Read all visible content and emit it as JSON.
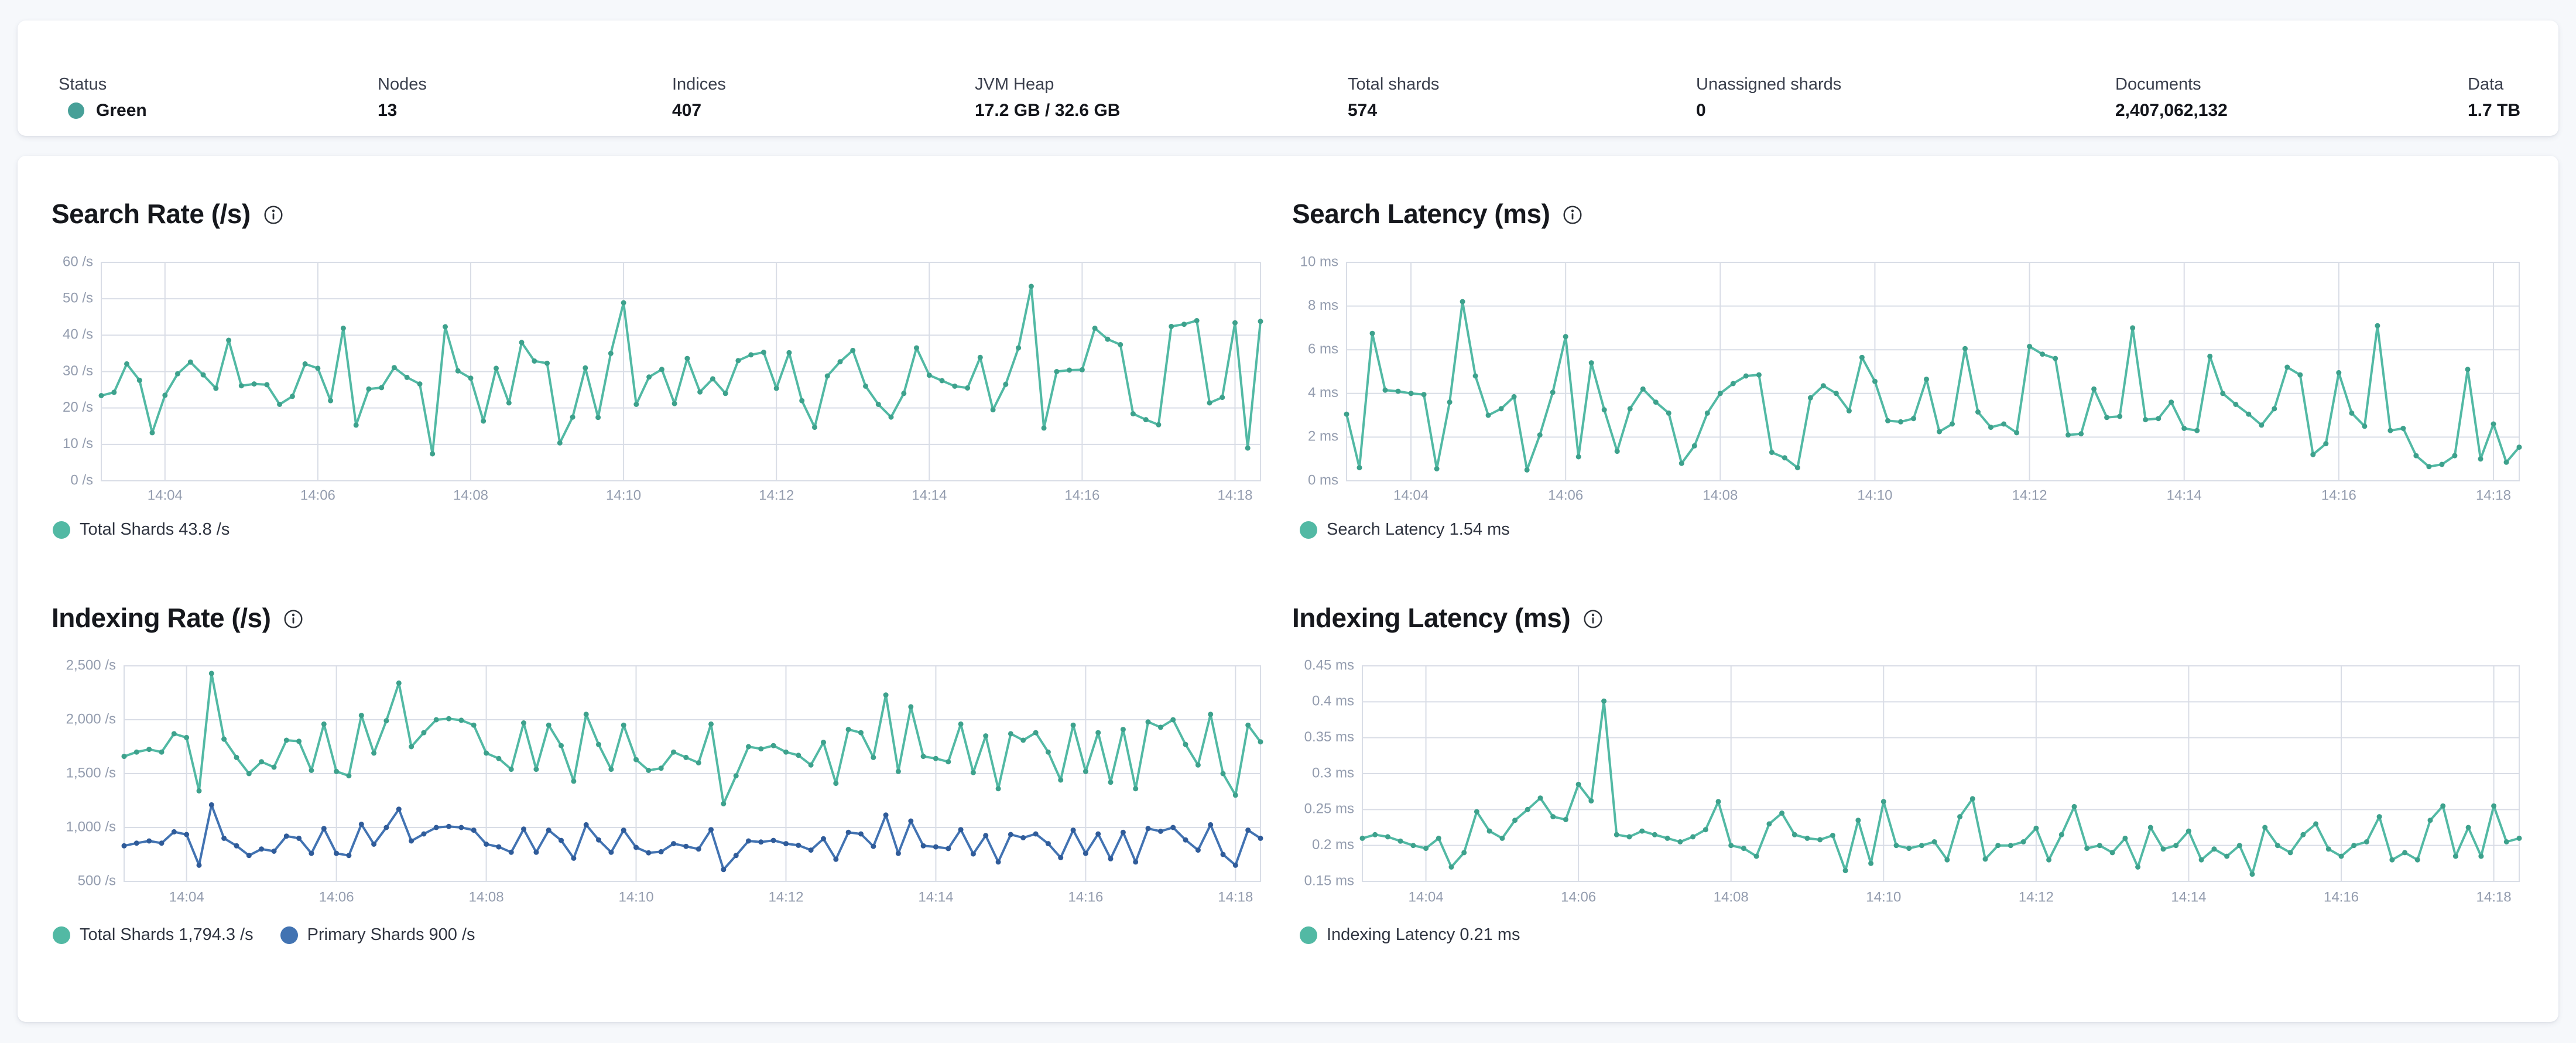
{
  "header": {
    "stats": [
      {
        "label": "Status",
        "value": "Green",
        "type": "status",
        "color": "#47a098"
      },
      {
        "label": "Nodes",
        "value": "13"
      },
      {
        "label": "Indices",
        "value": "407"
      },
      {
        "label": "JVM Heap",
        "value": "17.2 GB / 32.6 GB"
      },
      {
        "label": "Total shards",
        "value": "574"
      },
      {
        "label": "Unassigned shards",
        "value": "0"
      },
      {
        "label": "Documents",
        "value": "2,407,062,132"
      },
      {
        "label": "Data",
        "value": "1.7 TB"
      }
    ]
  },
  "chart_data": "see charts[] below",
  "charts": [
    {
      "type": "line",
      "title": "Search Rate (/s)",
      "x": {
        "unit": "seconds since 14:00",
        "t0": 190,
        "t1": 1100,
        "dt": 10,
        "ticks": [
          {
            "t": 240,
            "label": "14:04"
          },
          {
            "t": 360,
            "label": "14:06"
          },
          {
            "t": 480,
            "label": "14:08"
          },
          {
            "t": 600,
            "label": "14:10"
          },
          {
            "t": 720,
            "label": "14:12"
          },
          {
            "t": 840,
            "label": "14:14"
          },
          {
            "t": 960,
            "label": "14:16"
          },
          {
            "t": 1080,
            "label": "14:18"
          }
        ]
      },
      "y": {
        "min": 0,
        "max": 60,
        "ticks": [
          {
            "v": 0,
            "label": "0 /s"
          },
          {
            "v": 10,
            "label": "10 /s"
          },
          {
            "v": 20,
            "label": "20 /s"
          },
          {
            "v": 30,
            "label": "30 /s"
          },
          {
            "v": 40,
            "label": "40 /s"
          },
          {
            "v": 50,
            "label": "50 /s"
          },
          {
            "v": 60,
            "label": "60 /s"
          }
        ]
      },
      "series": [
        {
          "name": "Total Shards",
          "legend": "Total Shards 43.8 /s",
          "color": "#52b9a4",
          "marker": "#3da18c",
          "values": [
            23.4,
            24.3,
            32.1,
            27.6,
            13.2,
            23.5,
            29.4,
            32.6,
            29.1,
            25.4,
            38.6,
            26.1,
            26.6,
            26.4,
            21.0,
            23.2,
            32.1,
            30.9,
            22.0,
            41.9,
            15.3,
            25.2,
            25.6,
            31.1,
            28.4,
            26.6,
            7.4,
            42.3,
            30.2,
            28.2,
            16.4,
            30.9,
            21.4,
            38.0,
            32.9,
            32.3,
            10.4,
            17.5,
            31.0,
            17.4,
            35.0,
            48.9,
            21.0,
            28.5,
            30.6,
            21.2,
            33.6,
            24.4,
            28.0,
            24.0,
            33.0,
            34.6,
            35.3,
            25.4,
            35.2,
            22.0,
            14.7,
            28.8,
            32.7,
            35.8,
            26.0,
            21.0,
            17.5,
            24.0,
            36.5,
            29.0,
            27.5,
            26.0,
            25.5,
            33.9,
            19.5,
            26.5,
            36.5,
            53.4,
            14.5,
            30.0,
            30.4,
            30.5,
            41.9,
            38.9,
            37.4,
            18.4,
            16.8,
            15.4,
            42.4,
            43.0,
            44.0,
            21.4,
            22.9,
            43.4,
            9.0,
            43.8
          ]
        }
      ]
    },
    {
      "type": "line",
      "title": "Search Latency (ms)",
      "x": {
        "unit": "seconds since 14:00",
        "t0": 190,
        "t1": 1100,
        "dt": 10,
        "ticks": [
          {
            "t": 240,
            "label": "14:04"
          },
          {
            "t": 360,
            "label": "14:06"
          },
          {
            "t": 480,
            "label": "14:08"
          },
          {
            "t": 600,
            "label": "14:10"
          },
          {
            "t": 720,
            "label": "14:12"
          },
          {
            "t": 840,
            "label": "14:14"
          },
          {
            "t": 960,
            "label": "14:16"
          },
          {
            "t": 1080,
            "label": "14:18"
          }
        ]
      },
      "y": {
        "min": 0,
        "max": 10,
        "ticks": [
          {
            "v": 0,
            "label": "0 ms"
          },
          {
            "v": 2,
            "label": "2 ms"
          },
          {
            "v": 4,
            "label": "4 ms"
          },
          {
            "v": 6,
            "label": "6 ms"
          },
          {
            "v": 8,
            "label": "8 ms"
          },
          {
            "v": 10,
            "label": "10 ms"
          }
        ]
      },
      "series": [
        {
          "name": "Search Latency",
          "legend": "Search Latency 1.54 ms",
          "color": "#52b9a4",
          "marker": "#3da18c",
          "values": [
            3.05,
            0.6,
            6.75,
            4.15,
            4.1,
            4.0,
            3.95,
            0.55,
            3.6,
            8.2,
            4.8,
            3.0,
            3.3,
            3.85,
            0.5,
            2.1,
            4.05,
            6.6,
            1.1,
            5.4,
            3.25,
            1.35,
            3.3,
            4.2,
            3.6,
            3.1,
            0.8,
            1.6,
            3.1,
            4.0,
            4.45,
            4.8,
            4.85,
            1.3,
            1.05,
            0.6,
            3.8,
            4.35,
            4.0,
            3.2,
            5.65,
            4.55,
            2.75,
            2.7,
            2.85,
            4.65,
            2.25,
            2.6,
            6.05,
            3.15,
            2.45,
            2.6,
            2.2,
            6.15,
            5.8,
            5.6,
            2.1,
            2.15,
            4.2,
            2.9,
            2.95,
            7.0,
            2.8,
            2.85,
            3.6,
            2.4,
            2.3,
            5.7,
            4.0,
            3.5,
            3.05,
            2.55,
            3.3,
            5.2,
            4.85,
            1.2,
            1.7,
            4.95,
            3.1,
            2.5,
            7.1,
            2.3,
            2.4,
            1.15,
            0.65,
            0.75,
            1.15,
            5.1,
            1.0,
            2.6,
            0.85,
            1.54
          ]
        }
      ]
    },
    {
      "type": "line",
      "title": "Indexing Rate (/s)",
      "x": {
        "unit": "seconds since 14:00",
        "t0": 190,
        "t1": 1100,
        "dt": 10,
        "ticks": [
          {
            "t": 240,
            "label": "14:04"
          },
          {
            "t": 360,
            "label": "14:06"
          },
          {
            "t": 480,
            "label": "14:08"
          },
          {
            "t": 600,
            "label": "14:10"
          },
          {
            "t": 720,
            "label": "14:12"
          },
          {
            "t": 840,
            "label": "14:14"
          },
          {
            "t": 960,
            "label": "14:16"
          },
          {
            "t": 1080,
            "label": "14:18"
          }
        ]
      },
      "y": {
        "min": 500,
        "max": 2500,
        "ticks": [
          {
            "v": 500,
            "label": "500 /s"
          },
          {
            "v": 1000,
            "label": "1,000 /s"
          },
          {
            "v": 1500,
            "label": "1,500 /s"
          },
          {
            "v": 2000,
            "label": "2,000 /s"
          },
          {
            "v": 2500,
            "label": "2,500 /s"
          }
        ]
      },
      "series": [
        {
          "name": "Total Shards",
          "legend": "Total Shards 1,794.3 /s",
          "color": "#52b9a4",
          "marker": "#3da18c",
          "values": [
            1660,
            1700,
            1725,
            1700,
            1870,
            1835,
            1340,
            2430,
            1820,
            1650,
            1500,
            1610,
            1560,
            1810,
            1800,
            1530,
            1960,
            1520,
            1480,
            2040,
            1690,
            1990,
            2340,
            1750,
            1880,
            2000,
            2010,
            1995,
            1950,
            1690,
            1640,
            1540,
            1970,
            1540,
            1950,
            1760,
            1430,
            2050,
            1770,
            1540,
            1950,
            1630,
            1530,
            1550,
            1700,
            1650,
            1600,
            1960,
            1220,
            1480,
            1750,
            1730,
            1760,
            1700,
            1670,
            1580,
            1790,
            1410,
            1910,
            1880,
            1650,
            2230,
            1520,
            2120,
            1660,
            1640,
            1610,
            1960,
            1510,
            1850,
            1360,
            1870,
            1810,
            1880,
            1700,
            1440,
            1950,
            1520,
            1880,
            1420,
            1910,
            1360,
            1980,
            1930,
            2000,
            1770,
            1580,
            2050,
            1500,
            1300,
            1950,
            1794.3
          ]
        },
        {
          "name": "Primary Shards",
          "legend": "Primary Shards 900 /s",
          "color": "#4273b2",
          "marker": "#2f5b99",
          "values": [
            830,
            855,
            875,
            855,
            960,
            935,
            650,
            1210,
            900,
            830,
            740,
            800,
            780,
            920,
            900,
            760,
            990,
            760,
            740,
            1030,
            845,
            1000,
            1170,
            875,
            940,
            1000,
            1010,
            1000,
            975,
            845,
            820,
            770,
            985,
            770,
            975,
            880,
            715,
            1025,
            885,
            770,
            975,
            815,
            765,
            775,
            850,
            825,
            800,
            980,
            610,
            740,
            875,
            865,
            880,
            850,
            835,
            790,
            895,
            705,
            955,
            940,
            825,
            1115,
            760,
            1060,
            830,
            820,
            805,
            980,
            755,
            925,
            680,
            935,
            905,
            940,
            850,
            720,
            975,
            760,
            940,
            710,
            955,
            680,
            990,
            965,
            1000,
            885,
            790,
            1025,
            750,
            650,
            975,
            900
          ]
        }
      ]
    },
    {
      "type": "line",
      "title": "Indexing Latency (ms)",
      "x": {
        "unit": "seconds since 14:00",
        "t0": 190,
        "t1": 1100,
        "dt": 10,
        "ticks": [
          {
            "t": 240,
            "label": "14:04"
          },
          {
            "t": 360,
            "label": "14:06"
          },
          {
            "t": 480,
            "label": "14:08"
          },
          {
            "t": 600,
            "label": "14:10"
          },
          {
            "t": 720,
            "label": "14:12"
          },
          {
            "t": 840,
            "label": "14:14"
          },
          {
            "t": 960,
            "label": "14:16"
          },
          {
            "t": 1080,
            "label": "14:18"
          }
        ]
      },
      "y": {
        "min": 0.15,
        "max": 0.45,
        "ticks": [
          {
            "v": 0.15,
            "label": "0.15 ms"
          },
          {
            "v": 0.2,
            "label": "0.2 ms"
          },
          {
            "v": 0.25,
            "label": "0.25 ms"
          },
          {
            "v": 0.3,
            "label": "0.3 ms"
          },
          {
            "v": 0.35,
            "label": "0.35 ms"
          },
          {
            "v": 0.4,
            "label": "0.4 ms"
          },
          {
            "v": 0.45,
            "label": "0.45 ms"
          }
        ]
      },
      "series": [
        {
          "name": "Indexing Latency",
          "legend": "Indexing Latency 0.21 ms",
          "color": "#52b9a4",
          "marker": "#3da18c",
          "values": [
            0.21,
            0.215,
            0.212,
            0.206,
            0.2,
            0.196,
            0.21,
            0.17,
            0.19,
            0.247,
            0.22,
            0.21,
            0.235,
            0.25,
            0.266,
            0.24,
            0.236,
            0.285,
            0.262,
            0.401,
            0.215,
            0.212,
            0.22,
            0.215,
            0.21,
            0.205,
            0.212,
            0.222,
            0.261,
            0.2,
            0.196,
            0.185,
            0.23,
            0.245,
            0.215,
            0.21,
            0.208,
            0.214,
            0.165,
            0.235,
            0.175,
            0.261,
            0.2,
            0.196,
            0.2,
            0.205,
            0.18,
            0.24,
            0.265,
            0.181,
            0.2,
            0.2,
            0.205,
            0.224,
            0.18,
            0.215,
            0.254,
            0.196,
            0.2,
            0.19,
            0.21,
            0.17,
            0.225,
            0.195,
            0.2,
            0.22,
            0.18,
            0.195,
            0.185,
            0.2,
            0.16,
            0.225,
            0.2,
            0.19,
            0.215,
            0.23,
            0.195,
            0.185,
            0.2,
            0.205,
            0.24,
            0.18,
            0.19,
            0.18,
            0.235,
            0.255,
            0.185,
            0.225,
            0.185,
            0.255,
            0.205,
            0.21
          ]
        }
      ]
    }
  ]
}
